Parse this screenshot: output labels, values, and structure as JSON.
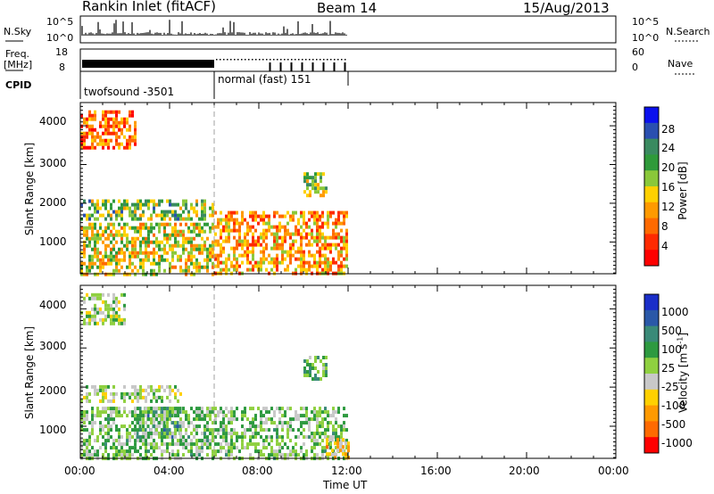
{
  "header": {
    "station": "Rankin Inlet (fitACF)",
    "beam": "Beam 14",
    "date": "15/Aug/2013"
  },
  "summary_panels": {
    "nsky_label": "N.Sky",
    "nsearch_label": "N.Search",
    "freq_label_line1": "Freq.",
    "freq_label_line2": "[MHz]",
    "nave_label": "Nave",
    "cpid_label": "CPID",
    "nsky_ticks": [
      "10^5",
      "10^0"
    ],
    "nsearch_ticks": [
      "10^5",
      "10^0"
    ],
    "freq_ticks": [
      "18",
      "8"
    ],
    "nave_ticks": [
      "60",
      "0"
    ],
    "cpid_modes": [
      {
        "text": "twofsound -3501",
        "start_hour": 0,
        "end_hour": 6.0
      },
      {
        "text": "normal (fast) 151",
        "start_hour": 6.0,
        "end_hour": 12.0
      }
    ]
  },
  "x_axis": {
    "label": "Time UT",
    "ticks": [
      "00:00",
      "04:00",
      "08:00",
      "12:00",
      "16:00",
      "20:00",
      "00:00"
    ],
    "range_hours": [
      0,
      24
    ]
  },
  "chart_data": [
    {
      "type": "heatmap",
      "title": "",
      "xlabel": "Time UT",
      "ylabel": "Slant Range [km]",
      "xlim_hours": [
        0,
        24
      ],
      "ylim": [
        180,
        4600
      ],
      "yticks": [
        "1000",
        "2000",
        "3000",
        "4000"
      ],
      "colorbar": {
        "label": "Power [dB]",
        "ticks": [
          "28",
          "24",
          "20",
          "16",
          "12",
          "8",
          "4"
        ],
        "range": [
          0,
          30
        ],
        "colors": [
          "#0a10ee",
          "#2a4fb0",
          "#3a8a60",
          "#2f9a3a",
          "#8ac83a",
          "#ffd000",
          "#ff9a00",
          "#ff6a00",
          "#ff2a00",
          "#ff0000"
        ]
      },
      "data_end_hour": 12.0,
      "regions": [
        {
          "t": [
            0.0,
            6.0
          ],
          "r": [
            1600,
            2100
          ],
          "level": 18
        },
        {
          "t": [
            0.0,
            6.0
          ],
          "r": [
            200,
            1500
          ],
          "level": 14
        },
        {
          "t": [
            6.0,
            12.0
          ],
          "r": [
            200,
            1800
          ],
          "level": 10
        },
        {
          "t": [
            10.0,
            11.0
          ],
          "r": [
            2200,
            2800
          ],
          "level": 16
        },
        {
          "t": [
            0.0,
            2.5
          ],
          "r": [
            3400,
            4400
          ],
          "level": 7
        }
      ]
    },
    {
      "type": "heatmap",
      "title": "",
      "xlabel": "Time UT",
      "ylabel": "Slant Range [km]",
      "xlim_hours": [
        0,
        24
      ],
      "ylim": [
        180,
        4600
      ],
      "yticks": [
        "1000",
        "2000",
        "3000",
        "4000"
      ],
      "colorbar": {
        "label": "Velocity [m s-1]",
        "label_main": "Velocity",
        "label_unit": "[m s",
        "label_exp": "-1",
        "label_close": "]",
        "ticks": [
          "1000",
          "500",
          "100",
          "25",
          "-25",
          "-100",
          "-500",
          "-1000"
        ],
        "range": [
          -1200,
          1200
        ],
        "colors": [
          "#1a2ec8",
          "#2a58a8",
          "#3a8a78",
          "#2e9a40",
          "#8fd040",
          "#c8c8c8",
          "#ffd000",
          "#ff9a00",
          "#ff6a00",
          "#ff0000"
        ]
      },
      "data_end_hour": 12.0,
      "regions": [
        {
          "t": [
            0.0,
            4.5
          ],
          "r": [
            1650,
            2050
          ],
          "v": 0
        },
        {
          "t": [
            2.5,
            4.5
          ],
          "r": [
            700,
            1500
          ],
          "v": 600
        },
        {
          "t": [
            0.0,
            12.0
          ],
          "r": [
            200,
            1500
          ],
          "v": 150
        },
        {
          "t": [
            11.0,
            12.0
          ],
          "r": [
            200,
            700
          ],
          "v": -400
        },
        {
          "t": [
            10.0,
            11.0
          ],
          "r": [
            2200,
            2800
          ],
          "v": 300
        },
        {
          "t": [
            0.0,
            2.0
          ],
          "r": [
            3600,
            4400
          ],
          "v": 0
        }
      ]
    }
  ],
  "colors": {
    "axis": "#000000",
    "dashed_marker": "#a0a0a0"
  }
}
